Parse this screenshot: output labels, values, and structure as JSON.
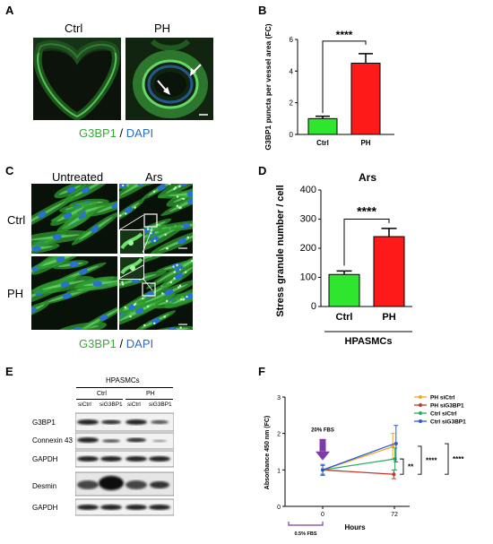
{
  "panel_letters": [
    "A",
    "B",
    "C",
    "D",
    "E",
    "F"
  ],
  "panelA": {
    "col_labels": [
      "Ctrl",
      "PH"
    ],
    "stain_green": "G3BP1",
    "stain_sep": " / ",
    "stain_blue": "DAPI"
  },
  "panelC": {
    "col_labels": [
      "Untreated",
      "Ars"
    ],
    "row_labels": [
      "Ctrl",
      "PH"
    ],
    "stain_green": "G3BP1",
    "stain_sep": " / ",
    "stain_blue": "DAPI"
  },
  "panelE": {
    "header": "HPASMCs",
    "groups": [
      "Ctrl",
      "PH"
    ],
    "lanes": [
      "siCtrl",
      "siG3BP1",
      "siCtrl",
      "siG3BP1"
    ],
    "rows": [
      "G3BP1",
      "Connexin 43",
      "GAPDH",
      "Desmin",
      "GAPDH"
    ]
  },
  "chart_data": [
    {
      "type": "bar",
      "panel": "B",
      "categories": [
        "Ctrl",
        "PH"
      ],
      "values": [
        1.0,
        4.5
      ],
      "errors": [
        0.15,
        0.6
      ],
      "colors": [
        "#2ee62e",
        "#ff1a1a"
      ],
      "ylabel": "G3BP1 puncta per vessel area (FC)",
      "ylim": [
        0,
        6
      ],
      "yticks": [
        0,
        2,
        4,
        6
      ],
      "significance": "****"
    },
    {
      "type": "bar",
      "panel": "D",
      "title": "Ars",
      "categories": [
        "Ctrl",
        "PH"
      ],
      "values": [
        110,
        240
      ],
      "errors": [
        12,
        28
      ],
      "colors": [
        "#2ee62e",
        "#ff1a1a"
      ],
      "ylabel": "Stress granule number / cell",
      "xlabel": "HPASMCs",
      "ylim": [
        0,
        400
      ],
      "yticks": [
        0,
        100,
        200,
        300,
        400
      ],
      "significance": "****"
    },
    {
      "type": "line",
      "panel": "F",
      "x": [
        0,
        72
      ],
      "xticks": [
        0,
        72
      ],
      "xlabel": "Hours",
      "ylabel": "Absorbance 450 nm (FC)",
      "ylim": [
        0,
        3
      ],
      "yticks": [
        0,
        1,
        2,
        3
      ],
      "series": [
        {
          "name": "PH siCtrl",
          "values": [
            1.0,
            1.65
          ],
          "errors": [
            0.12,
            0.35
          ],
          "color": "#f5a623"
        },
        {
          "name": "PH siG3BP1",
          "values": [
            1.0,
            0.88
          ],
          "errors": [
            0.12,
            0.12
          ],
          "color": "#c0392b"
        },
        {
          "name": "Ctrl siCtrl",
          "values": [
            1.0,
            1.3
          ],
          "errors": [
            0.12,
            0.3
          ],
          "color": "#27ae60"
        },
        {
          "name": "Ctrl siG3BP1",
          "values": [
            1.0,
            1.72
          ],
          "errors": [
            0.15,
            0.5
          ],
          "color": "#2a5ad8"
        }
      ],
      "annotations": {
        "arrow_label": "20% FBS",
        "baseline_label": "0.5% FBS",
        "sig": [
          "**",
          "****",
          "****"
        ]
      },
      "legend": "top-right"
    }
  ]
}
